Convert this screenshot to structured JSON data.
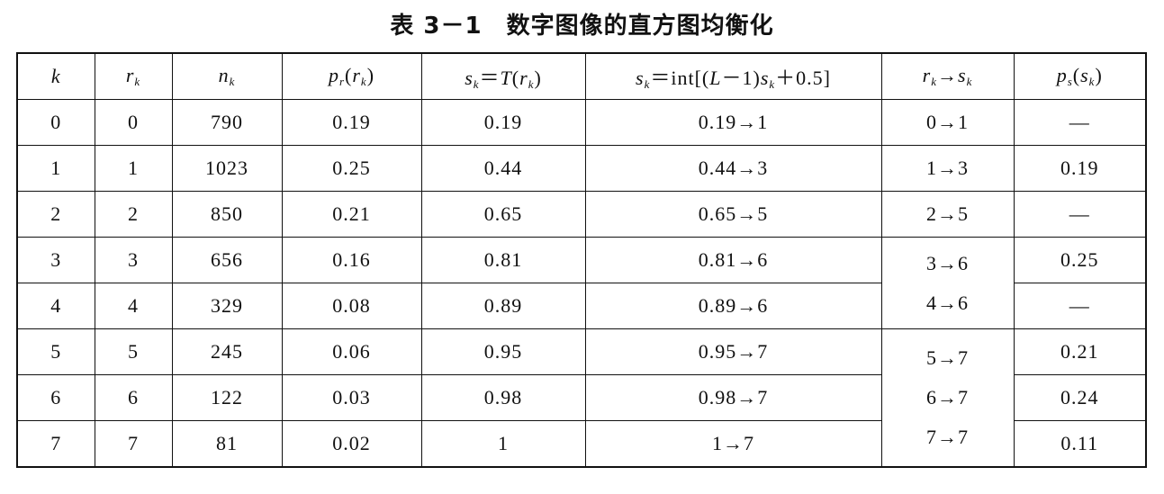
{
  "header": {
    "title": "表 3－1　数字图像的直方图均衡化"
  },
  "table": {
    "columns": [
      [
        {
          "text": "k",
          "style": "italic"
        }
      ],
      [
        {
          "text": "r",
          "style": "italic"
        },
        {
          "text": "k",
          "style": "sub"
        }
      ],
      [
        {
          "text": "n",
          "style": "italic"
        },
        {
          "text": "k",
          "style": "sub"
        }
      ],
      [
        {
          "text": "p",
          "style": "italic"
        },
        {
          "text": "r",
          "style": "sub"
        },
        {
          "text": "(",
          "style": "normal"
        },
        {
          "text": "r",
          "style": "italic"
        },
        {
          "text": "k",
          "style": "sub"
        },
        {
          "text": ")",
          "style": "normal"
        }
      ],
      [
        {
          "text": "s",
          "style": "italic"
        },
        {
          "text": "k",
          "style": "sub"
        },
        {
          "text": "＝",
          "style": "normal"
        },
        {
          "text": "T",
          "style": "italic"
        },
        {
          "text": "(",
          "style": "normal"
        },
        {
          "text": "r",
          "style": "italic"
        },
        {
          "text": "k",
          "style": "sub"
        },
        {
          "text": ")",
          "style": "normal"
        }
      ],
      [
        {
          "text": "s",
          "style": "italic"
        },
        {
          "text": "k",
          "style": "sub"
        },
        {
          "text": "＝int[(",
          "style": "normal"
        },
        {
          "text": "L",
          "style": "italic"
        },
        {
          "text": "－1)",
          "style": "normal"
        },
        {
          "text": "s",
          "style": "italic"
        },
        {
          "text": "k",
          "style": "sub"
        },
        {
          "text": "＋0.5]",
          "style": "normal"
        }
      ],
      [
        {
          "text": "r",
          "style": "italic"
        },
        {
          "text": "k",
          "style": "sub"
        },
        {
          "text": "→",
          "style": "normal"
        },
        {
          "text": "s",
          "style": "italic"
        },
        {
          "text": "k",
          "style": "sub"
        }
      ],
      [
        {
          "text": "p",
          "style": "italic"
        },
        {
          "text": "s",
          "style": "sub"
        },
        {
          "text": "(",
          "style": "normal"
        },
        {
          "text": "s",
          "style": "italic"
        },
        {
          "text": "k",
          "style": "sub"
        },
        {
          "text": ")",
          "style": "normal"
        }
      ]
    ],
    "rows": [
      [
        "0",
        "0",
        "790",
        "0.19",
        "0.19",
        "0.19→1"
      ],
      [
        "1",
        "1",
        "1023",
        "0.25",
        "0.44",
        "0.44→3"
      ],
      [
        "2",
        "2",
        "850",
        "0.21",
        "0.65",
        "0.65→5"
      ],
      [
        "3",
        "3",
        "656",
        "0.16",
        "0.81",
        "0.81→6"
      ],
      [
        "4",
        "4",
        "329",
        "0.08",
        "0.89",
        "0.89→6"
      ],
      [
        "5",
        "5",
        "245",
        "0.06",
        "0.95",
        "0.95→7"
      ],
      [
        "6",
        "6",
        "122",
        "0.03",
        "0.98",
        "0.98→7"
      ],
      [
        "7",
        "7",
        "81",
        "0.02",
        "1",
        "1→7"
      ]
    ],
    "mapping_groups": [
      [
        "0→1"
      ],
      [
        "1→3"
      ],
      [
        "2→5"
      ],
      [
        "3→6",
        "4→6"
      ],
      [
        "5→7",
        "6→7",
        "7→7"
      ]
    ],
    "ps": [
      "—",
      "0.19",
      "—",
      "0.25",
      "—",
      "0.21",
      "0.24",
      "0.11"
    ]
  }
}
